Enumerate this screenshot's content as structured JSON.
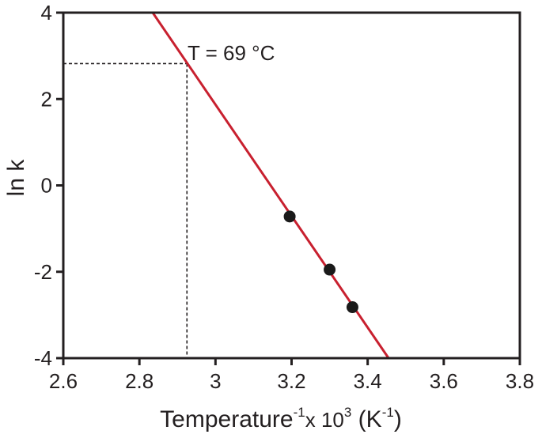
{
  "chart_data": {
    "type": "scatter",
    "xlabel": {
      "base": "Temperature",
      "sup1": "-1",
      "mid": "x 10",
      "sup2": "3",
      "unit_open": " (K",
      "sup3": "-1",
      "unit_close": ")"
    },
    "ylabel": "ln k",
    "xlim": [
      2.6,
      3.8
    ],
    "ylim": [
      -4,
      4
    ],
    "x_ticks": [
      2.6,
      2.8,
      3.0,
      3.2,
      3.4,
      3.6,
      3.8
    ],
    "x_tick_labels": [
      "2.6",
      "2.8",
      "3",
      "3.2",
      "3.4",
      "3.6",
      "3.8"
    ],
    "y_ticks": [
      -4,
      -2,
      0,
      2,
      4
    ],
    "y_tick_labels": [
      "-4",
      "-2",
      "0",
      "2",
      "4"
    ],
    "grid": false,
    "points": [
      {
        "x": 3.195,
        "y": -0.72
      },
      {
        "x": 3.3,
        "y": -1.95
      },
      {
        "x": 3.36,
        "y": -2.82
      }
    ],
    "fit_line": {
      "x1": 2.835,
      "y1": 4.0,
      "x2": 3.455,
      "y2": -4.0,
      "color": "#c8202f"
    },
    "reference": {
      "x": 2.925,
      "y": 2.82
    },
    "annotation": "T = 69 °C",
    "colors": {
      "points": "#1a1a1a",
      "axes": "#231f20",
      "fit": "#c8202f"
    }
  }
}
